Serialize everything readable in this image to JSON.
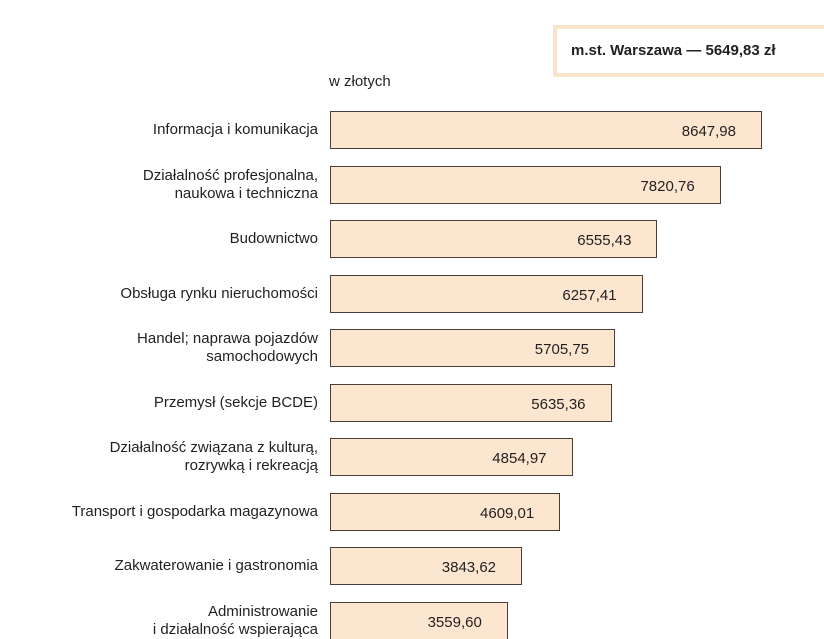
{
  "chart_data": {
    "type": "bar",
    "orientation": "horizontal",
    "annotation": "m.st. Warszawa — 5649,83 zł",
    "axis_label": "w złotych",
    "categories": [
      "Informacja i komunikacja",
      "Działalność profesjonalna,\nnaukowa i techniczna",
      "Budownictwo",
      "Obsługa rynku nieruchomości",
      "Handel; naprawa pojazdów\nsamochodowych",
      "Przemysł (sekcje BCDE)",
      "Działalność związana z kulturą,\nrozrywką i rekreacją",
      "Transport i gospodarka magazynowa",
      "Zakwaterowanie i gastronomia",
      "Administrowanie\ni działalność wspierająca"
    ],
    "values": [
      8647.98,
      7820.76,
      6555.43,
      6257.41,
      5705.75,
      5635.36,
      4854.97,
      4609.01,
      3843.62,
      3559.6
    ],
    "value_labels": [
      "8647,98",
      "7820,76",
      "6555,43",
      "6257,41",
      "5705,75",
      "5635,36",
      "4854,97",
      "4609,01",
      "3843,62",
      "3559,60"
    ],
    "color": "#fde6cf"
  }
}
